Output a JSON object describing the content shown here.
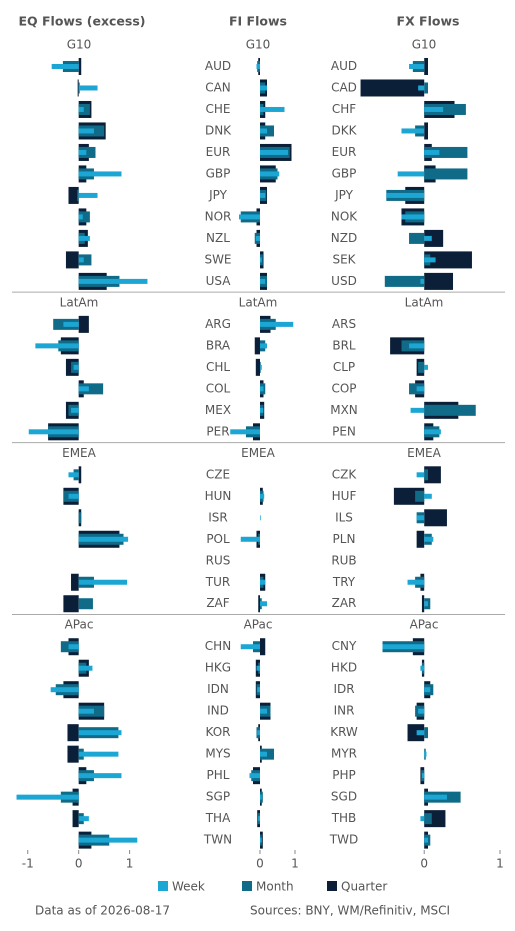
{
  "chart_data": [
    {
      "type": "bar",
      "title": "EQ Flows (excess)",
      "groups": [
        "G10",
        "LatAm",
        "EMEA",
        "APac"
      ],
      "xlim": [
        -1.25,
        1.4
      ],
      "xticks": [
        -1,
        0,
        1
      ],
      "series": [
        {
          "values": [
            [
              -0.53,
              0.37,
              0.1,
              0.3,
              0.15,
              0.84,
              0.37,
              0.08,
              0.22,
              0.1,
              1.35
            ],
            [
              -0.3,
              -0.85,
              -0.1,
              0.2,
              -0.15,
              -0.98
            ],
            [
              -0.2,
              -0.2,
              0,
              0.97,
              0,
              0.95,
              0
            ],
            [
              -0.2,
              0.27,
              -0.55,
              0.3,
              0.84,
              0.78,
              0.84,
              -1.22,
              0.2,
              1.15
            ]
          ]
        },
        {
          "values": [
            [
              -0.31,
              0.02,
              0.22,
              0.5,
              0.33,
              0.3,
              -0.03,
              0.22,
              0.12,
              0.25,
              0.8
            ],
            [
              -0.5,
              -0.4,
              -0.15,
              0.48,
              -0.2,
              -0.6
            ],
            [
              -0.1,
              -0.3,
              0.05,
              0.88,
              0,
              0.3,
              0.28
            ],
            [
              -0.35,
              0.15,
              -0.45,
              0.5,
              0.78,
              0.1,
              0.3,
              -0.35,
              0.1,
              0.6
            ]
          ]
        },
        {
          "values": [
            [
              0.05,
              -0.02,
              0.25,
              0.53,
              0.2,
              0.15,
              -0.2,
              0.15,
              0.18,
              -0.25,
              0.55
            ],
            [
              0.2,
              -0.35,
              -0.25,
              0.1,
              -0.25,
              -0.6
            ],
            [
              0.05,
              -0.3,
              0.05,
              0.8,
              0,
              -0.15,
              -0.3
            ],
            [
              -0.2,
              0.2,
              -0.3,
              0.5,
              -0.22,
              -0.22,
              0.15,
              -0.12,
              -0.12,
              0.25
            ]
          ]
        }
      ]
    },
    {
      "type": "bar",
      "title": "FI Flows",
      "groups": [
        "G10",
        "LatAm",
        "EMEA",
        "APac"
      ],
      "categories": [
        [
          "AUD",
          "CAN",
          "CHE",
          "DNK",
          "EUR",
          "GBP",
          "JPY",
          "NOR",
          "NZL",
          "SWE",
          "USA"
        ],
        [
          "ARG",
          "BRA",
          "CHL",
          "COL",
          "MEX",
          "PER"
        ],
        [
          "CZE",
          "HUN",
          "ISR",
          "POL",
          "RUS",
          "TUR",
          "ZAF"
        ],
        [
          "CHN",
          "HKG",
          "IDN",
          "IND",
          "KOR",
          "MYS",
          "PHL",
          "SGP",
          "THA",
          "TWN"
        ]
      ],
      "xlim": [
        -0.7,
        1.1
      ],
      "xticks": [
        0,
        1
      ],
      "series": [
        {
          "values": [
            [
              -0.1,
              0.2,
              0.7,
              0.2,
              0.8,
              0.55,
              0.15,
              -0.6,
              -0.12,
              0.05,
              0.15
            ],
            [
              0.95,
              0.2,
              0.05,
              0.1,
              0.1,
              -0.85
            ],
            [
              0,
              0.12,
              0.02,
              -0.55,
              0,
              0.15,
              0.2
            ],
            [
              -0.55,
              -0.1,
              -0.08,
              0.2,
              -0.08,
              0.2,
              -0.3,
              0.05,
              -0.05,
              0.05
            ]
          ]
        },
        {
          "values": [
            [
              -0.08,
              0.15,
              0.1,
              0.4,
              0.85,
              0.5,
              0.18,
              -0.55,
              -0.15,
              0.08,
              0.2
            ],
            [
              0.45,
              0.15,
              0.02,
              0.15,
              0.1,
              -0.4
            ],
            [
              0,
              0.1,
              0,
              -0.05,
              0,
              0.1,
              0.05
            ],
            [
              -0.2,
              -0.05,
              -0.1,
              0.3,
              -0.1,
              0.4,
              -0.25,
              0.08,
              -0.08,
              0.05
            ]
          ]
        },
        {
          "values": [
            [
              -0.05,
              0.2,
              0.15,
              0.15,
              0.9,
              0.45,
              0.2,
              -0.1,
              -0.1,
              0.1,
              0.2
            ],
            [
              0.3,
              -0.15,
              -0.12,
              0.1,
              0.12,
              -0.2
            ],
            [
              0,
              0.08,
              0,
              -0.1,
              0,
              0.15,
              -0.05
            ],
            [
              0.15,
              -0.12,
              -0.12,
              0.3,
              -0.05,
              0.05,
              -0.2,
              0.05,
              -0.08,
              0.08
            ]
          ]
        }
      ]
    },
    {
      "type": "bar",
      "title": "FX Flows",
      "groups": [
        "G10",
        "LatAm",
        "EMEA",
        "APac"
      ],
      "categories": [
        [
          "AUD",
          "CAD",
          "CHF",
          "DKK",
          "EUR",
          "GBP",
          "JPY",
          "NOK",
          "NZD",
          "SEK",
          "USD"
        ],
        [
          "ARS",
          "BRL",
          "CLP",
          "COP",
          "MXN",
          "PEN"
        ],
        [
          "CZK",
          "HUF",
          "ILS",
          "PLN",
          "RUB",
          "TRY",
          "ZAR"
        ],
        [
          "CNY",
          "HKD",
          "IDR",
          "INR",
          "KRW",
          "MYR",
          "PHP",
          "SGD",
          "THB",
          "TWD"
        ]
      ],
      "xlim": [
        -0.9,
        1.0
      ],
      "xticks": [
        0,
        1
      ],
      "series": [
        {
          "values": [
            [
              -0.2,
              -0.08,
              0.25,
              -0.3,
              0.2,
              -0.35,
              -0.5,
              -0.3,
              0.1,
              0.15,
              -0.05
            ],
            [
              0,
              -0.2,
              0.05,
              -0.1,
              -0.18,
              0.22
            ],
            [
              -0.1,
              0.1,
              -0.1,
              0.12,
              0,
              -0.22,
              0.05
            ],
            [
              -0.55,
              -0.05,
              0.08,
              -0.08,
              -0.1,
              0.03,
              -0.03,
              0.3,
              -0.05,
              0.05
            ]
          ]
        },
        {
          "values": [
            [
              -0.15,
              0.05,
              0.55,
              -0.12,
              0.57,
              0.57,
              -0.5,
              -0.25,
              -0.2,
              0.08,
              -0.52
            ],
            [
              0,
              -0.3,
              -0.08,
              -0.2,
              0.68,
              0.2
            ],
            [
              0.05,
              -0.12,
              -0.1,
              0.1,
              0,
              -0.12,
              0.08
            ],
            [
              -0.55,
              -0.03,
              0.12,
              -0.12,
              0.05,
              0.02,
              -0.04,
              0.48,
              0.1,
              0.08
            ]
          ]
        },
        {
          "values": [
            [
              0.05,
              -0.84,
              0.4,
              0.05,
              0.1,
              0.15,
              -0.25,
              -0.3,
              0.25,
              0.63,
              0.38
            ],
            [
              0,
              -0.45,
              -0.1,
              -0.12,
              0.45,
              0.12
            ],
            [
              0.22,
              -0.4,
              0.3,
              -0.1,
              0,
              -0.05,
              -0.03
            ],
            [
              -0.15,
              -0.03,
              0.08,
              -0.1,
              -0.22,
              0,
              -0.05,
              0.05,
              0.28,
              0.05
            ]
          ]
        }
      ]
    }
  ],
  "legend": [
    {
      "name": "Week",
      "color": "#1ba6d4"
    },
    {
      "name": "Month",
      "color": "#0f6b88"
    },
    {
      "name": "Quarter",
      "color": "#0b1f38"
    }
  ],
  "footer": {
    "date_note": "Data as of 2026-08-17",
    "sources": "Sources:  BNY, WM/Refinitiv, MSCI"
  }
}
